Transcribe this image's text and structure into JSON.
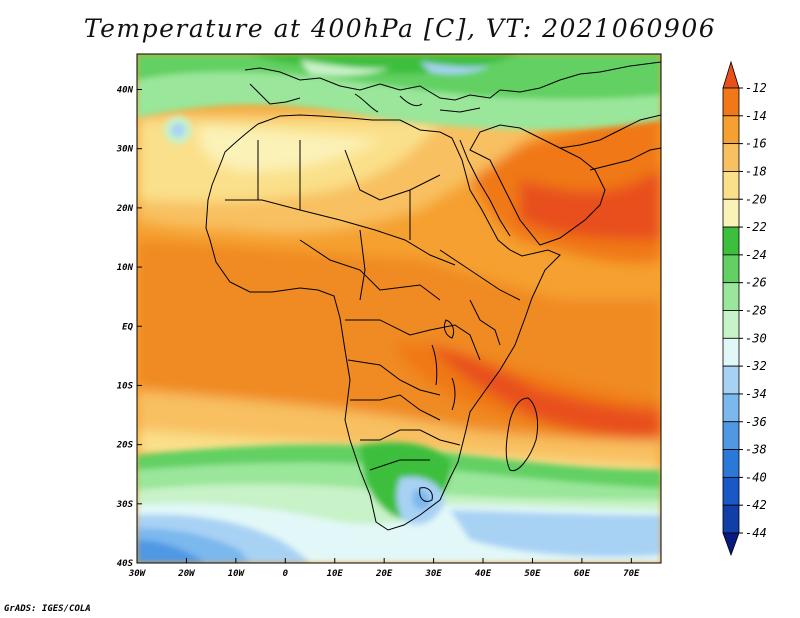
{
  "title": "Temperature at 400hPa [C], VT: 2021060906",
  "credit": "GrADS: IGES/COLA",
  "map": {
    "lon_range": [
      -30,
      76
    ],
    "lat_range": [
      -40,
      46
    ],
    "lon_ticks": [
      "30W",
      "20W",
      "10W",
      "0",
      "10E",
      "20E",
      "30E",
      "40E",
      "50E",
      "60E",
      "70E"
    ],
    "lat_ticks": [
      "40N",
      "30N",
      "20N",
      "10N",
      "EQ",
      "10S",
      "20S",
      "30S",
      "40S"
    ]
  },
  "colorbar": {
    "labels": [
      "-12",
      "-14",
      "-16",
      "-18",
      "-20",
      "-22",
      "-24",
      "-26",
      "-28",
      "-30",
      "-32",
      "-34",
      "-36",
      "-38",
      "-40",
      "-42",
      "-44"
    ],
    "colors": [
      "#e8501a",
      "#f07818",
      "#f5a030",
      "#f8c060",
      "#fae08a",
      "#fbf2b8",
      "#3cbf3c",
      "#62d062",
      "#9ae69a",
      "#c8f2c8",
      "#e2f8f8",
      "#a8d2f4",
      "#7ab8ee",
      "#5098e4",
      "#2a78d8",
      "#1a58c8",
      "#123ea8",
      "#0a1a80"
    ]
  },
  "colors": {
    "frame": "#000000",
    "coast": "#000000"
  }
}
